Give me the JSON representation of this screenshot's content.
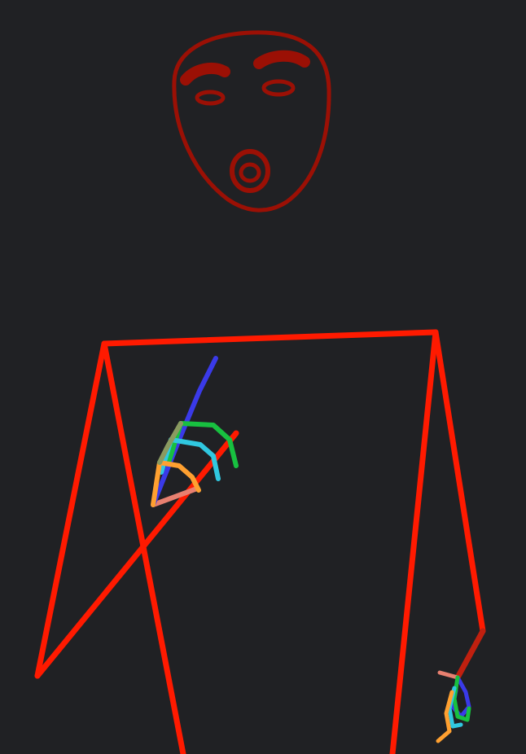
{
  "image": {
    "subject": "pose-skeleton",
    "background": "#202124"
  },
  "colors": {
    "face": "#9b1005",
    "body": "#ff1a00",
    "arm_right_lower": "#c0200f",
    "hand_palm_thumb": "#e88070",
    "finger_index": "#3a3ae8",
    "finger_middle": "#18c040",
    "finger_ring": "#30c8e0",
    "finger_pinky": "#ffa030",
    "finger_extra": "#8a9a60"
  }
}
